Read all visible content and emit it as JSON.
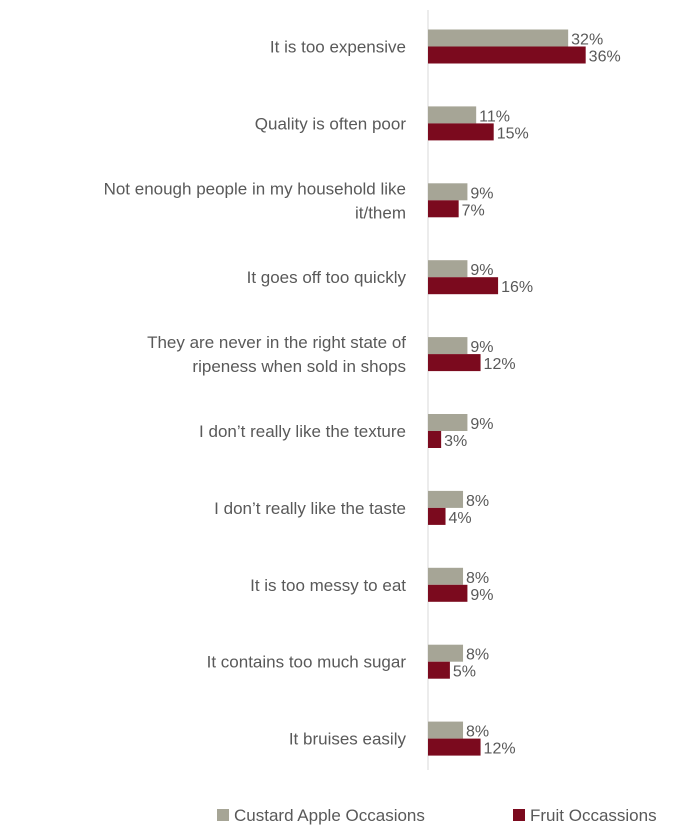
{
  "chart_data": {
    "type": "bar",
    "orientation": "horizontal",
    "categories": [
      [
        "It is too expensive"
      ],
      [
        "Quality is often poor"
      ],
      [
        "Not enough people in my household like",
        "it/them"
      ],
      [
        "It goes off too quickly"
      ],
      [
        "They are never in the right state of",
        "ripeness when sold in shops"
      ],
      [
        "I don’t really like the texture"
      ],
      [
        "I don’t really like the taste"
      ],
      [
        "It is too messy to eat"
      ],
      [
        "It contains too much sugar"
      ],
      [
        "It bruises easily"
      ]
    ],
    "series": [
      {
        "name": "Custard Apple Occasions",
        "color": "#a6a596",
        "values": [
          32,
          11,
          9,
          9,
          9,
          9,
          8,
          8,
          8,
          8
        ],
        "labels": [
          "32%",
          "11%",
          "9%",
          "9%",
          "9%",
          "9%",
          "8%",
          "8%",
          "8%",
          "8%"
        ]
      },
      {
        "name": "Fruit Occassions",
        "color": "#7b0a1e",
        "values": [
          36,
          15,
          7,
          16,
          12,
          3,
          4,
          9,
          5,
          12
        ],
        "labels": [
          "36%",
          "15%",
          "7%",
          "16%",
          "12%",
          "3%",
          "4%",
          "9%",
          "5%",
          "12%"
        ]
      }
    ],
    "xlim": [
      0,
      100
    ],
    "title": "",
    "xlabel": "",
    "ylabel": "",
    "grid": false,
    "legend_position": "bottom"
  }
}
